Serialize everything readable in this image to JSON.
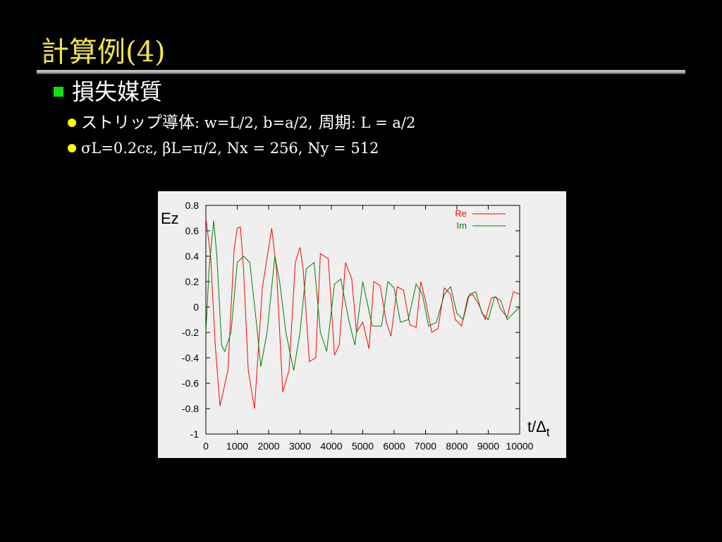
{
  "slide": {
    "title": "計算例(4)",
    "heading": "損失媒質",
    "bullets": [
      {
        "jp": "ストリップ導体",
        "text": ": w=L/2, b=a/2,",
        "jp2": "周期",
        "text2": ": L = a/2"
      },
      {
        "text": "σL=0.2cε, βL=π/2, Nx = 256, Ny = 512"
      }
    ]
  },
  "colors": {
    "title": "#f2e24a",
    "bullet_square": "#10e010",
    "bullet_dot": "#ffff00",
    "re": "#ff0000",
    "im": "#008000"
  },
  "chart_data": {
    "type": "line",
    "ylabel": "Ez",
    "xlabel": "t/Δt",
    "xlim": [
      0,
      10000
    ],
    "ylim": [
      -1,
      0.8
    ],
    "xticks": [
      "0",
      "1000",
      "2000",
      "3000",
      "4000",
      "5000",
      "6000",
      "7000",
      "8000",
      "9000",
      "10000"
    ],
    "yticks": [
      "0.8",
      "0.6",
      "0.4",
      "0.2",
      "0",
      "-0.2",
      "-0.4",
      "-0.6",
      "-0.8",
      "-1"
    ],
    "legend": "top-right",
    "series": [
      {
        "name": "Re",
        "color": "#ff0000",
        "x": [
          0,
          150,
          300,
          450,
          700,
          900,
          1000,
          1100,
          1200,
          1350,
          1550,
          1800,
          2100,
          2250,
          2450,
          2650,
          2850,
          3000,
          3100,
          3300,
          3500,
          3650,
          3900,
          4100,
          4250,
          4450,
          4650,
          4800,
          5000,
          5200,
          5350,
          5550,
          5750,
          5900,
          6100,
          6300,
          6500,
          6700,
          6850,
          7000,
          7200,
          7400,
          7600,
          7800,
          7950,
          8150,
          8350,
          8500,
          8700,
          8900,
          9100,
          9250,
          9400,
          9600,
          9800,
          10000
        ],
        "y": [
          0.7,
          0.4,
          -0.3,
          -0.78,
          -0.5,
          0.45,
          0.62,
          0.63,
          0.3,
          -0.5,
          -0.8,
          0.15,
          0.62,
          0.3,
          -0.67,
          -0.5,
          0.35,
          0.47,
          0.3,
          -0.43,
          -0.4,
          0.42,
          0.38,
          -0.38,
          -0.3,
          0.35,
          0.22,
          -0.2,
          -0.12,
          -0.33,
          0.2,
          0.17,
          -0.12,
          -0.23,
          0.16,
          0.13,
          -0.14,
          -0.16,
          0.2,
          0.05,
          -0.2,
          -0.17,
          0.15,
          0.1,
          -0.1,
          -0.15,
          0.08,
          0.1,
          0.02,
          -0.1,
          0.07,
          0.08,
          -0.02,
          -0.08,
          0.12,
          0.1
        ]
      },
      {
        "name": "Im",
        "color": "#008000",
        "x": [
          0,
          100,
          250,
          350,
          500,
          600,
          800,
          1000,
          1200,
          1400,
          1600,
          1750,
          1950,
          2200,
          2350,
          2550,
          2800,
          3000,
          3200,
          3450,
          3650,
          3850,
          4100,
          4300,
          4550,
          4750,
          5000,
          5300,
          5600,
          5800,
          6000,
          6200,
          6450,
          6700,
          6900,
          7100,
          7350,
          7600,
          7800,
          8000,
          8200,
          8400,
          8600,
          8800,
          9000,
          9200,
          9400,
          9600,
          9800,
          10000
        ],
        "y": [
          -0.2,
          0.3,
          0.68,
          0.4,
          -0.3,
          -0.35,
          -0.2,
          0.35,
          0.4,
          0.35,
          -0.1,
          -0.47,
          -0.2,
          0.4,
          0.2,
          -0.2,
          -0.5,
          -0.2,
          0.3,
          0.35,
          -0.2,
          -0.35,
          0.18,
          0.22,
          -0.1,
          -0.3,
          0.2,
          -0.15,
          -0.15,
          0.2,
          0.15,
          -0.12,
          -0.1,
          0.18,
          0.1,
          -0.15,
          -0.12,
          0.1,
          0.16,
          -0.05,
          -0.1,
          0.1,
          0.12,
          -0.05,
          -0.1,
          0.08,
          0.05,
          -0.1,
          -0.05,
          0.0
        ]
      }
    ]
  }
}
